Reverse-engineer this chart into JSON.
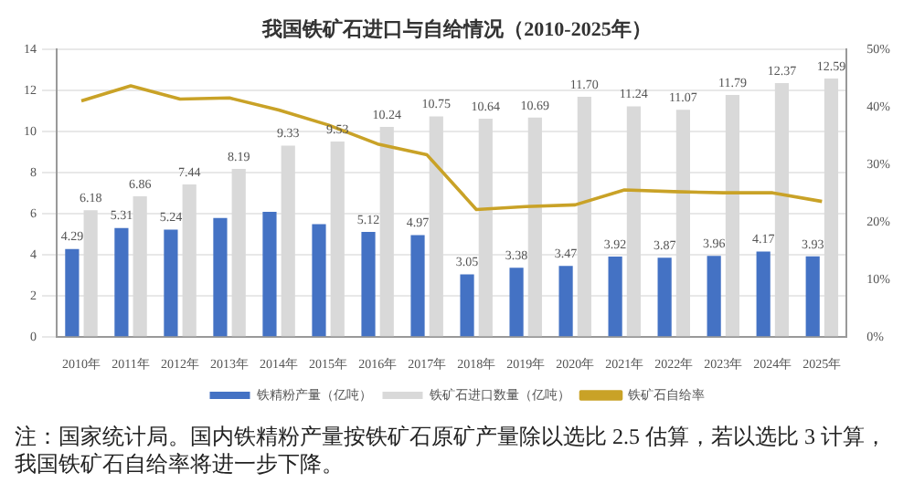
{
  "chart_data": {
    "type": "bar",
    "title": "我国铁矿石进口与自给情况（2010-2025年）",
    "categories": [
      "2010年",
      "2011年",
      "2012年",
      "2013年",
      "2014年",
      "2015年",
      "2016年",
      "2017年",
      "2018年",
      "2019年",
      "2020年",
      "2021年",
      "2022年",
      "2023年",
      "2024年",
      "2025年"
    ],
    "series": [
      {
        "name": "铁精粉产量（亿吨）",
        "color": "#4472c4",
        "values": [
          4.29,
          5.31,
          5.24,
          5.8,
          6.1,
          5.5,
          5.12,
          4.97,
          3.05,
          3.38,
          3.47,
          3.92,
          3.87,
          3.96,
          4.17,
          3.93
        ],
        "value_labels": [
          "4.29",
          "5.31",
          "5.24",
          null,
          null,
          null,
          "5.12",
          "4.97",
          "3.05",
          "3.38",
          "3.47",
          "3.92",
          "3.87",
          "3.96",
          "4.17",
          "3.93"
        ]
      },
      {
        "name": "铁矿石进口数量（亿吨）",
        "color": "#d9d9d9",
        "values": [
          6.18,
          6.86,
          7.44,
          8.19,
          9.33,
          9.53,
          10.24,
          10.75,
          10.64,
          10.69,
          11.7,
          11.24,
          11.07,
          11.79,
          12.37,
          12.59
        ],
        "value_labels": [
          "6.18",
          "6.86",
          "7.44",
          "8.19",
          "9.33",
          "9.53",
          "10.24",
          "10.75",
          "10.64",
          "10.69",
          "11.70",
          "11.24",
          "11.07",
          "11.79",
          "12.37",
          "12.59"
        ]
      },
      {
        "name": "铁矿石自给率",
        "type": "line",
        "axis": "y2",
        "color": "#c9a227",
        "values": [
          41.1,
          43.7,
          41.4,
          41.6,
          39.5,
          36.9,
          33.6,
          31.7,
          22.2,
          22.7,
          23.0,
          25.6,
          25.3,
          25.1,
          25.1,
          23.6
        ]
      }
    ],
    "ylim": [
      0,
      14
    ],
    "yticks": [
      0,
      2,
      4,
      6,
      8,
      10,
      12,
      14
    ],
    "y2lim": [
      0,
      50
    ],
    "y2ticks": [
      {
        "value": 0,
        "label": "0%"
      },
      {
        "value": 10,
        "label": "10%"
      },
      {
        "value": 20,
        "label": "20%"
      },
      {
        "value": 30,
        "label": "30%"
      },
      {
        "value": 40,
        "label": "40%"
      },
      {
        "value": 50,
        "label": "50%"
      }
    ],
    "grid": "y",
    "legend": "bottom",
    "marker": "none",
    "line_style": "solid",
    "annotations": [
      "注：国家统计局。国内铁精粉产量按铁矿石原矿产量除以选比 2.5 估算，若以选比 3 计算，我国铁矿石自给率将进一步下降。"
    ]
  }
}
